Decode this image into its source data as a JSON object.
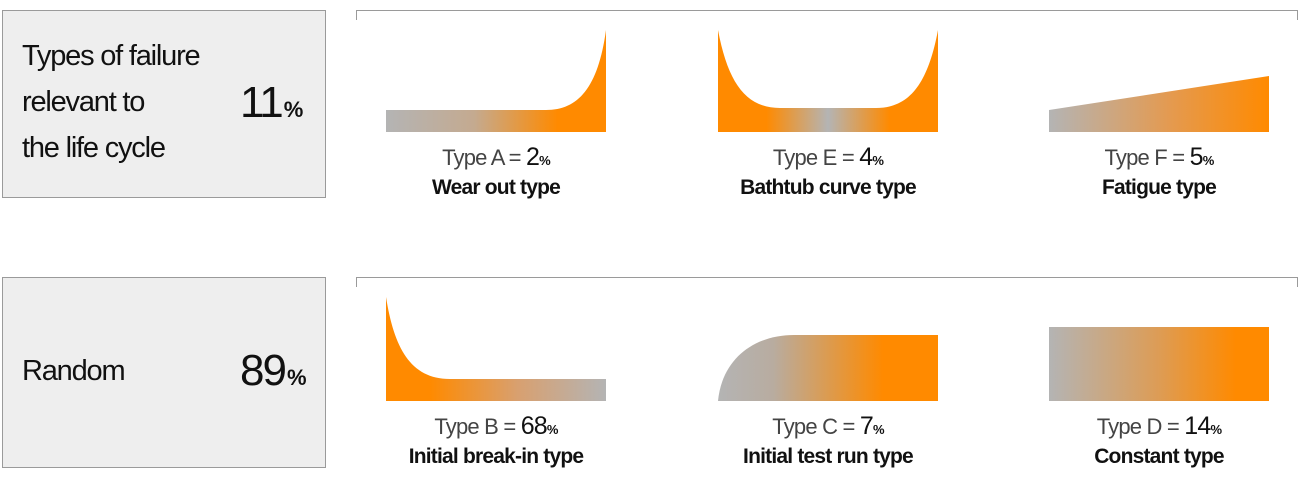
{
  "colors": {
    "gray": "#b4b4b4",
    "orange": "#ff8a00",
    "box_fill": "#eeeeee"
  },
  "groups": [
    {
      "label_lines": [
        "Types of failure",
        "relevant to",
        "the life cycle"
      ],
      "percent": "11",
      "percent_unit": "%",
      "items": [
        {
          "type_label": "Type A =",
          "value": "2",
          "unit": "%",
          "name": "Wear out type",
          "shape": "wear-out",
          "fraction": 0.02
        },
        {
          "type_label": "Type E =",
          "value": "4",
          "unit": "%",
          "name": "Bathtub curve type",
          "shape": "bathtub",
          "fraction": 0.04
        },
        {
          "type_label": "Type F =",
          "value": "5",
          "unit": "%",
          "name": "Fatigue type",
          "shape": "fatigue",
          "fraction": 0.05
        }
      ]
    },
    {
      "label_lines": [
        "Random"
      ],
      "percent": "89",
      "percent_unit": "%",
      "items": [
        {
          "type_label": "Type B =",
          "value": "68",
          "unit": "%",
          "name": "Initial break-in type",
          "shape": "break-in",
          "fraction": 0.68
        },
        {
          "type_label": "Type C =",
          "value": "7",
          "unit": "%",
          "name": "Initial test run type",
          "shape": "test-run",
          "fraction": 0.07
        },
        {
          "type_label": "Type D =",
          "value": "14",
          "unit": "%",
          "name": "Constant type",
          "shape": "constant",
          "fraction": 0.14
        }
      ]
    }
  ]
}
